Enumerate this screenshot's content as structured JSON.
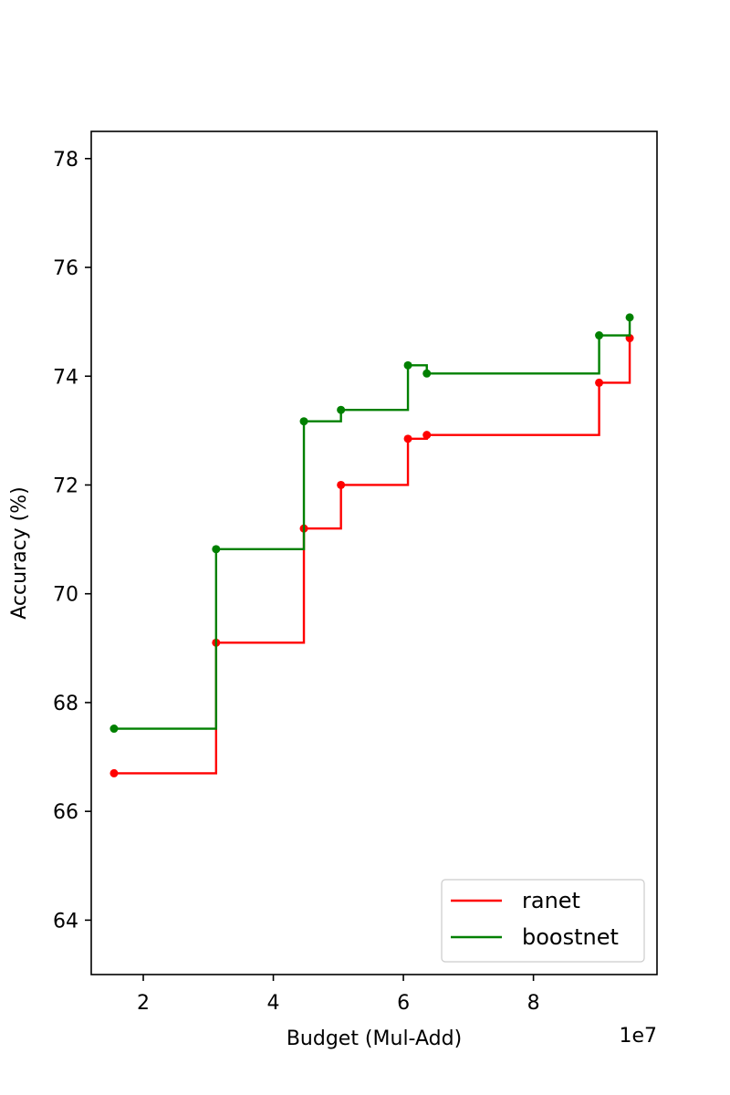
{
  "chart_data": {
    "type": "line",
    "step": "post",
    "xlabel": "Budget (Mul-Add)",
    "ylabel": "Accuracy (%)",
    "x_offset_label": "1e7",
    "xlim": [
      12000000.0,
      99000000.0
    ],
    "ylim": [
      63,
      78.5
    ],
    "xticks": [
      20000000.0,
      40000000.0,
      60000000.0,
      80000000.0
    ],
    "xtick_labels": [
      "2",
      "4",
      "6",
      "8"
    ],
    "yticks": [
      64,
      66,
      68,
      70,
      72,
      74,
      76,
      78
    ],
    "ytick_labels": [
      "64",
      "66",
      "68",
      "70",
      "72",
      "74",
      "76",
      "78"
    ],
    "grid": false,
    "legend_position": "lower right",
    "series": [
      {
        "name": "ranet",
        "color": "#ff0000",
        "x": [
          15500000.0,
          31200000.0,
          44700000.0,
          50400000.0,
          60700000.0,
          63600000.0,
          90100000.0,
          94800000.0
        ],
        "y": [
          66.7,
          69.1,
          71.2,
          72.0,
          72.85,
          72.92,
          73.88,
          74.7
        ]
      },
      {
        "name": "boostnet",
        "color": "#008000",
        "x": [
          15500000.0,
          31200000.0,
          44700000.0,
          50400000.0,
          60700000.0,
          63600000.0,
          90100000.0,
          94800000.0
        ],
        "y": [
          67.52,
          70.82,
          73.17,
          73.38,
          74.2,
          74.05,
          74.75,
          75.08
        ]
      }
    ]
  }
}
